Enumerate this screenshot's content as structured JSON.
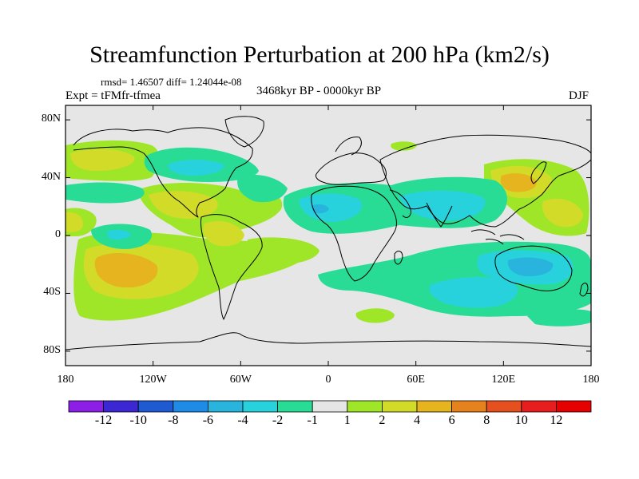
{
  "title": "Streamfunction Perturbation at 200 hPa (km2/s)",
  "stats_line": "rmsd= 1.46507 diff= 1.24044e-08",
  "experiment": "Expt = tFMfr-tfmea",
  "period": "3468kyr BP - 0000kyr BP",
  "season": "DJF",
  "map": {
    "projection": "cylindrical equidistant",
    "lon_range": [
      -180,
      180
    ],
    "lat_range": [
      -90,
      90
    ],
    "lat_ticks": [
      {
        "value": 80,
        "label": "80N"
      },
      {
        "value": 40,
        "label": "40N"
      },
      {
        "value": 0,
        "label": "0"
      },
      {
        "value": -40,
        "label": "40S"
      },
      {
        "value": -80,
        "label": "80S"
      }
    ],
    "lon_ticks": [
      {
        "value": -180,
        "label": "180"
      },
      {
        "value": -120,
        "label": "120W"
      },
      {
        "value": -60,
        "label": "60W"
      },
      {
        "value": 0,
        "label": "0"
      },
      {
        "value": 60,
        "label": "60E"
      },
      {
        "value": 120,
        "label": "120E"
      },
      {
        "value": 180,
        "label": "180"
      }
    ]
  },
  "colorbar": {
    "levels": [
      "-12",
      "-10",
      "-8",
      "-6",
      "-4",
      "-2",
      "-1",
      "1",
      "2",
      "4",
      "6",
      "8",
      "10",
      "12"
    ],
    "colors": [
      "#8c1ee6",
      "#3c28d2",
      "#1e5ad2",
      "#1e8ce6",
      "#28b4dc",
      "#28d2dc",
      "#28dc96",
      "#e6e6e6",
      "#a0e628",
      "#d2dc28",
      "#e6b41e",
      "#e6821e",
      "#e6501e",
      "#e61e1e",
      "#e60000"
    ]
  },
  "colors": {
    "green": "#a0e628",
    "yellow": "#d2dc28",
    "orange": "#e6b41e",
    "teal": "#28dc96",
    "cyan": "#28d2dc",
    "blue": "#28b4dc",
    "neutral": "#e6e6e6"
  }
}
